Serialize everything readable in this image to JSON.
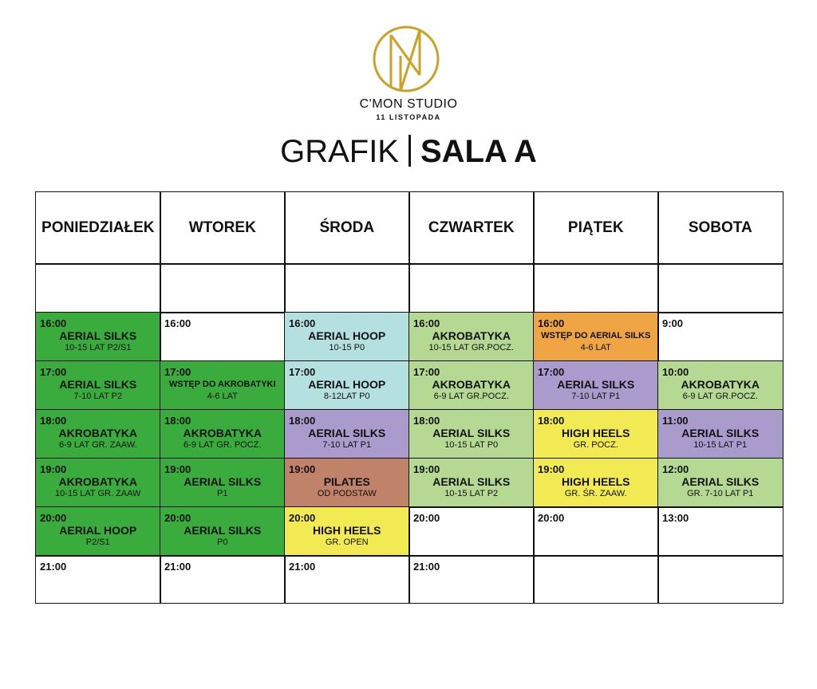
{
  "header": {
    "brand": "C'MON STUDIO",
    "location": "11 LISTOPADA",
    "title": "GRAFIK",
    "room": "SALA A"
  },
  "schedule": [
    {
      "day": "PONIEDZIAŁEK",
      "cells": [
        {
          "time": "16:00",
          "title": "AERIAL SILKS",
          "sub": "10-15 LAT P2/S1",
          "color": "#3aac3e"
        },
        {
          "time": "17:00",
          "title": "AERIAL SILKS",
          "sub": "7-10 LAT P2",
          "color": "#3aac3e"
        },
        {
          "time": "18:00",
          "title": "AKROBATYKA",
          "sub": "6-9 LAT GR. ZAAW.",
          "color": "#3aac3e"
        },
        {
          "time": "19:00",
          "title": "AKROBATYKA",
          "sub": "10-15 LAT GR. ZAAW",
          "color": "#3aac3e"
        },
        {
          "time": "20:00",
          "title": "AERIAL HOOP",
          "sub": "P2/S1",
          "color": "#3aac3e"
        },
        {
          "time": "21:00"
        }
      ]
    },
    {
      "day": "WTOREK",
      "cells": [
        {
          "time": "16:00"
        },
        {
          "time": "17:00",
          "title": "WSTĘP DO AKROBATYKI",
          "sub": "4-6 LAT",
          "color": "#3aac3e"
        },
        {
          "time": "18:00",
          "title": "AKROBATYKA",
          "sub": "6-9 LAT GR. POCZ.",
          "color": "#3aac3e"
        },
        {
          "time": "19:00",
          "title": "AERIAL SILKS",
          "sub": "P1",
          "color": "#3aac3e"
        },
        {
          "time": "20:00",
          "title": "AERIAL SILKS",
          "sub": "P0",
          "color": "#3aac3e"
        },
        {
          "time": "21:00"
        }
      ]
    },
    {
      "day": "ŚRODA",
      "cells": [
        {
          "time": "16:00",
          "title": "AERIAL HOOP",
          "sub": "10-15 P0",
          "color": "#b5e0e0"
        },
        {
          "time": "17:00",
          "title": "AERIAL HOOP",
          "sub": "8-12LAT P0",
          "color": "#b5e0e0"
        },
        {
          "time": "18:00",
          "title": "AERIAL SILKS",
          "sub": "7-10 LAT P1",
          "color": "#a99bcc"
        },
        {
          "time": "19:00",
          "title": "PILATES",
          "sub": "OD PODSTAW",
          "color": "#c1826a"
        },
        {
          "time": "20:00",
          "title": "HIGH HEELS",
          "sub": "GR. OPEN",
          "color": "#f1ea52"
        },
        {
          "time": "21:00"
        }
      ]
    },
    {
      "day": "CZWARTEK",
      "cells": [
        {
          "time": "16:00",
          "title": "AKROBATYKA",
          "sub": "10-15 LAT GR.POCZ.",
          "color": "#b5d993"
        },
        {
          "time": "17:00",
          "title": "AKROBATYKA",
          "sub": "6-9 LAT GR.POCZ.",
          "color": "#b5d993"
        },
        {
          "time": "18:00",
          "title": "AERIAL SILKS",
          "sub": "10-15 LAT P0",
          "color": "#b5d993"
        },
        {
          "time": "19:00",
          "title": "AERIAL SILKS",
          "sub": "10-15 LAT P2",
          "color": "#b5d993"
        },
        {
          "time": "20:00"
        },
        {
          "time": "21:00"
        }
      ]
    },
    {
      "day": "PIĄTEK",
      "cells": [
        {
          "time": "16:00",
          "title": "WSTĘP DO AERIAL SILKS",
          "sub": "4-6 LAT",
          "color": "#f0a544"
        },
        {
          "time": "17:00",
          "title": "AERIAL SILKS",
          "sub": "7-10 LAT P1",
          "color": "#a99bcc"
        },
        {
          "time": "18:00",
          "title": "HIGH HEELS",
          "sub": "GR. POCZ.",
          "color": "#f1ea52"
        },
        {
          "time": "19:00",
          "title": "HIGH HEELS",
          "sub": "GR. ŚR. ZAAW.",
          "color": "#f1ea52"
        },
        {
          "time": "20:00"
        },
        null
      ]
    },
    {
      "day": "SOBOTA",
      "cells": [
        {
          "time": "9:00"
        },
        {
          "time": "10:00",
          "title": "AKROBATYKA",
          "sub": "6-9 LAT GR.POCZ.",
          "color": "#b5d993"
        },
        {
          "time": "11:00",
          "title": "AERIAL SILKS",
          "sub": "10-15 LAT P1",
          "color": "#a99bcc"
        },
        {
          "time": "12:00",
          "title": "AERIAL SILKS",
          "sub": "GR. 7-10 LAT P1",
          "color": "#b5d993"
        },
        {
          "time": "13:00"
        },
        null
      ]
    }
  ]
}
